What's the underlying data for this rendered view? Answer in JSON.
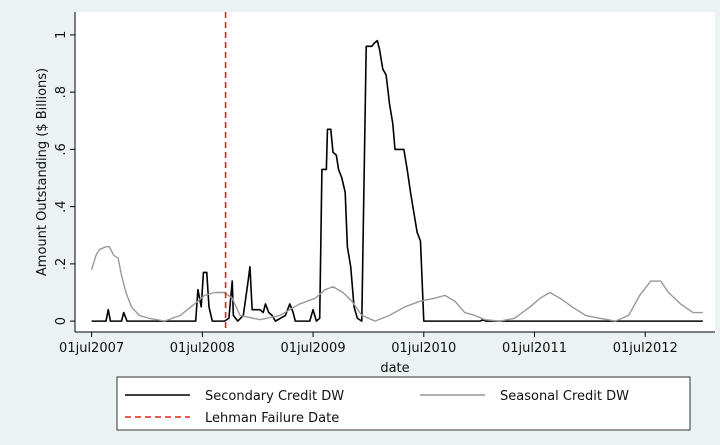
{
  "chart_data": {
    "type": "line",
    "y_label": "Amount Outstanding ($ Billions)",
    "x_label": "date",
    "xlim": [
      2007.35,
      2013.13
    ],
    "ylim": [
      -0.038,
      1.08
    ],
    "xticks": [
      {
        "value": 2007.5,
        "label": "01jul2007"
      },
      {
        "value": 2008.5,
        "label": "01jul2008"
      },
      {
        "value": 2009.5,
        "label": "01jul2009"
      },
      {
        "value": 2010.5,
        "label": "01jul2010"
      },
      {
        "value": 2011.5,
        "label": "01jul2011"
      },
      {
        "value": 2012.5,
        "label": "01jul2012"
      }
    ],
    "yticks": [
      0,
      {
        "value": 0.2,
        "label": ".2"
      },
      {
        "value": 0.4,
        "label": ".4"
      },
      {
        "value": 0.6,
        "label": ".6"
      },
      {
        "value": 0.8,
        "label": ".8"
      },
      1
    ],
    "grid": false,
    "legend": "bottom",
    "series": [
      {
        "name": "Secondary Credit DW",
        "color": "#000000",
        "x": [
          2007.5,
          2007.63,
          2007.65,
          2007.67,
          2007.77,
          2007.79,
          2007.82,
          2008.44,
          2008.46,
          2008.49,
          2008.51,
          2008.54,
          2008.56,
          2008.59,
          2008.7,
          2008.74,
          2008.77,
          2008.78,
          2008.82,
          2008.87,
          2008.91,
          2008.93,
          2008.95,
          2009.02,
          2009.05,
          2009.07,
          2009.1,
          2009.13,
          2009.16,
          2009.25,
          2009.29,
          2009.32,
          2009.34,
          2009.47,
          2009.5,
          2009.53,
          2009.56,
          2009.58,
          2009.62,
          2009.63,
          2009.66,
          2009.68,
          2009.71,
          2009.73,
          2009.76,
          2009.79,
          2009.81,
          2009.84,
          2009.87,
          2009.9,
          2009.94,
          2009.98,
          2010.03,
          2010.05,
          2010.08,
          2010.1,
          2010.13,
          2010.16,
          2010.19,
          2010.22,
          2010.24,
          2010.32,
          2010.35,
          2010.38,
          2010.41,
          2010.44,
          2010.47,
          2010.5,
          2011.01,
          2011.03,
          2011.06,
          2013.02
        ],
        "values": [
          0,
          0,
          0.04,
          0,
          0,
          0.03,
          0,
          0,
          0.11,
          0.05,
          0.17,
          0.17,
          0.05,
          0,
          0,
          0.01,
          0.14,
          0.02,
          0,
          0.02,
          0.13,
          0.19,
          0.04,
          0.04,
          0.03,
          0.06,
          0.03,
          0.02,
          0,
          0.02,
          0.06,
          0.03,
          0,
          0,
          0.04,
          0,
          0.01,
          0.53,
          0.53,
          0.67,
          0.67,
          0.59,
          0.58,
          0.53,
          0.5,
          0.45,
          0.26,
          0.19,
          0.05,
          0.01,
          0,
          0.96,
          0.96,
          0.97,
          0.98,
          0.95,
          0.88,
          0.86,
          0.76,
          0.69,
          0.6,
          0.6,
          0.53,
          0.45,
          0.38,
          0.31,
          0.28,
          0,
          0,
          0.005,
          0,
          0
        ]
      },
      {
        "name": "Seasonal Credit DW",
        "color": "#999999",
        "x": [
          2007.5,
          2007.54,
          2007.57,
          2007.63,
          2007.66,
          2007.7,
          2007.74,
          2007.77,
          2007.81,
          2007.86,
          2007.93,
          2008.02,
          2008.16,
          2008.3,
          2008.43,
          2008.52,
          2008.61,
          2008.7,
          2008.77,
          2008.84,
          2009.02,
          2009.2,
          2009.38,
          2009.52,
          2009.61,
          2009.68,
          2009.77,
          2009.85,
          2009.94,
          2010.06,
          2010.19,
          2010.33,
          2010.47,
          2010.6,
          2010.69,
          2010.78,
          2010.87,
          2010.96,
          2011.05,
          2011.19,
          2011.32,
          2011.46,
          2011.55,
          2011.64,
          2011.73,
          2011.84,
          2011.96,
          2012.09,
          2012.23,
          2012.35,
          2012.45,
          2012.55,
          2012.64,
          2012.71,
          2012.82,
          2012.93,
          2013.02
        ],
        "values": [
          0.18,
          0.23,
          0.25,
          0.26,
          0.26,
          0.23,
          0.22,
          0.16,
          0.1,
          0.05,
          0.02,
          0.01,
          0,
          0.02,
          0.06,
          0.09,
          0.1,
          0.1,
          0.08,
          0.02,
          0.005,
          0.02,
          0.06,
          0.08,
          0.11,
          0.12,
          0.1,
          0.07,
          0.02,
          0,
          0.02,
          0.05,
          0.07,
          0.08,
          0.09,
          0.07,
          0.03,
          0.02,
          0.005,
          0,
          0.01,
          0.05,
          0.08,
          0.1,
          0.08,
          0.05,
          0.02,
          0.01,
          0,
          0.02,
          0.09,
          0.14,
          0.14,
          0.1,
          0.06,
          0.03,
          0.03
        ]
      }
    ],
    "reference_lines": [
      {
        "name": "Lehman Failure Date",
        "color": "#e8201c",
        "x": 2008.71,
        "style": "dashed"
      }
    ]
  }
}
